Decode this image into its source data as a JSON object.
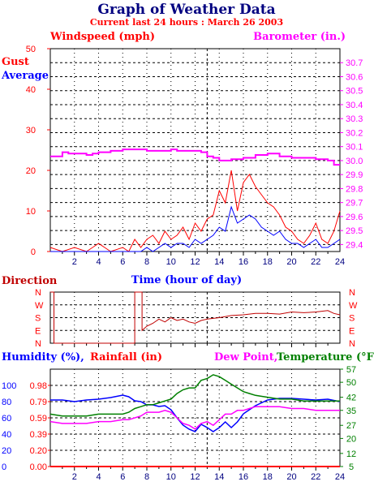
{
  "page": {
    "title": "Graph of Weather Data",
    "subtitle": "Current last 24 hours : March 26 2003"
  },
  "colors": {
    "navy": "#000080",
    "red": "#ff0000",
    "blue": "#0000ff",
    "magenta": "#ff00ff",
    "green": "#008000",
    "dark_red": "#c00000",
    "grid": "#000000"
  },
  "chart_data": [
    {
      "type": "line",
      "panel": "wind",
      "left_axis_label": "Windspeed (mph)",
      "right_axis_label": "Barometer (in.)",
      "legend": [
        "Gust",
        "Average"
      ],
      "xlabel": "Time (hour of day)",
      "x_ticks": [
        2,
        4,
        6,
        8,
        10,
        12,
        14,
        16,
        18,
        20,
        22,
        24
      ],
      "xlim": [
        0,
        24
      ],
      "ylim": [
        0,
        50
      ],
      "y_ticks": [
        0,
        10,
        20,
        30,
        40,
        50
      ],
      "y2lim": [
        29.35,
        30.8
      ],
      "y2_ticks": [
        "29.4",
        "29.5",
        "29.6",
        "29.7",
        "29.8",
        "29.9",
        "30.0",
        "30.1",
        "30.2",
        "30.3",
        "30.4",
        "30.5",
        "30.6",
        "30.7"
      ],
      "grid": true,
      "series": [
        {
          "name": "Gust",
          "color": "#ff0000",
          "axis": "left",
          "x": [
            0,
            1,
            2,
            3,
            3.5,
            4,
            5,
            6,
            6.5,
            7,
            7.5,
            8,
            8.5,
            9,
            9.5,
            10,
            10.5,
            11,
            11.5,
            12,
            12.5,
            13,
            13.5,
            14,
            14.5,
            15,
            15.5,
            16,
            16.5,
            17,
            17.5,
            18,
            18.5,
            19,
            19.5,
            20,
            20.5,
            21,
            21.5,
            22,
            22.5,
            23,
            23.5,
            24
          ],
          "values": [
            1,
            0,
            1,
            0,
            1,
            2,
            0,
            1,
            0,
            3,
            1,
            3,
            4,
            2,
            5,
            3,
            4,
            6,
            3,
            7,
            5,
            8,
            9,
            15,
            12,
            20,
            10,
            17,
            19,
            16,
            14,
            12,
            11,
            9,
            6,
            5,
            3,
            2,
            4,
            7,
            3,
            2,
            5,
            10
          ]
        },
        {
          "name": "Average",
          "color": "#0000ff",
          "axis": "left",
          "x": [
            0,
            1,
            2,
            3,
            4,
            5,
            6,
            7,
            7.5,
            8,
            8.5,
            9,
            9.5,
            10,
            10.5,
            11,
            11.5,
            12,
            12.5,
            13,
            13.5,
            14,
            14.5,
            15,
            15.5,
            16,
            16.5,
            17,
            17.5,
            18,
            18.5,
            19,
            19.5,
            20,
            20.5,
            21,
            21.5,
            22,
            22.5,
            23,
            23.5,
            24
          ],
          "values": [
            0,
            0,
            0,
            0,
            0,
            0,
            0,
            0,
            0,
            1,
            0,
            1,
            2,
            1,
            2,
            2,
            1,
            3,
            2,
            3,
            4,
            6,
            5,
            11,
            7,
            8,
            9,
            8,
            6,
            5,
            4,
            5,
            3,
            2,
            2,
            1,
            2,
            3,
            1,
            1,
            2,
            3
          ]
        },
        {
          "name": "Barometer",
          "color": "#ff00ff",
          "axis": "right",
          "x": [
            0,
            1,
            1.5,
            2,
            3,
            3.5,
            4,
            5,
            6,
            7,
            8,
            9,
            10,
            10.5,
            11,
            12,
            12.5,
            13,
            13.5,
            14,
            15,
            16,
            17,
            18,
            19,
            20,
            21,
            22,
            23,
            23.5,
            24
          ],
          "values": [
            30.03,
            30.06,
            30.05,
            30.05,
            30.04,
            30.05,
            30.06,
            30.07,
            30.08,
            30.08,
            30.07,
            30.07,
            30.08,
            30.07,
            30.07,
            30.07,
            30.06,
            30.03,
            30.02,
            30.0,
            30.01,
            30.02,
            30.04,
            30.05,
            30.03,
            30.02,
            30.02,
            30.01,
            30.0,
            29.97,
            29.97
          ]
        }
      ]
    },
    {
      "type": "line",
      "panel": "direction",
      "left_axis_label": "Direction",
      "right_axis_label": "",
      "xlim": [
        0,
        24
      ],
      "y_ticks": [
        "N",
        "W",
        "S",
        "E",
        "N"
      ],
      "series": [
        {
          "name": "Direction",
          "color": "#c00000",
          "x": [
            0,
            0.3,
            0.3,
            7.0,
            7.0,
            7.6,
            7.6,
            8,
            8.5,
            9,
            9.5,
            10,
            10.5,
            11,
            11.5,
            12,
            12.5,
            13,
            14,
            15,
            16,
            17,
            18,
            19,
            20,
            21,
            22,
            23,
            23.5,
            24
          ],
          "values": [
            360,
            360,
            0,
            0,
            360,
            360,
            90,
            120,
            140,
            170,
            150,
            180,
            160,
            170,
            150,
            140,
            160,
            170,
            180,
            195,
            200,
            210,
            210,
            205,
            220,
            215,
            220,
            230,
            210,
            200
          ]
        }
      ]
    },
    {
      "type": "line",
      "panel": "humidity",
      "legend": [
        "Humidity (%),",
        "Rainfall (in)",
        "Dew Point,",
        "Temperature (°F)"
      ],
      "xlim": [
        0,
        24
      ],
      "humidity_ticks": [
        0,
        20,
        40,
        60,
        80,
        100
      ],
      "rain_ticks": [
        "0.00",
        "0.20",
        "0.39",
        "0.59",
        "0.79",
        "0.98"
      ],
      "temp_ticks": [
        5,
        12,
        20,
        27,
        35,
        42,
        50,
        57
      ],
      "series": [
        {
          "name": "Humidity (%)",
          "color": "#0000ff",
          "axis": "humidity",
          "x": [
            0,
            1,
            2,
            3,
            4,
            5,
            6,
            6.5,
            7,
            7.5,
            8,
            8.5,
            9,
            9.5,
            10,
            10.5,
            11,
            11.5,
            12,
            12.5,
            13,
            13.5,
            14,
            14.5,
            15,
            15.5,
            16,
            16.5,
            17,
            18,
            19,
            20,
            21,
            22,
            23,
            24
          ],
          "values": [
            82,
            82,
            80,
            82,
            83,
            85,
            88,
            86,
            81,
            80,
            76,
            76,
            74,
            75,
            70,
            60,
            51,
            46,
            43,
            52,
            48,
            43,
            48,
            55,
            48,
            55,
            65,
            70,
            75,
            82,
            84,
            84,
            83,
            82,
            83,
            80
          ]
        },
        {
          "name": "Rainfall (in)",
          "color": "#ff0000",
          "axis": "rain",
          "x": [
            0,
            24
          ],
          "values": [
            0,
            0
          ]
        },
        {
          "name": "Dew Point",
          "color": "#ff00ff",
          "axis": "temp",
          "x": [
            0,
            1,
            2,
            3,
            4,
            5,
            6,
            6.5,
            7,
            7.5,
            8,
            8.5,
            9,
            9.5,
            10,
            10.5,
            11,
            11.5,
            12,
            12.5,
            13,
            13.5,
            14,
            14.5,
            15,
            15.5,
            16,
            16.5,
            17,
            18,
            19,
            20,
            21,
            22,
            23,
            24
          ],
          "values": [
            29,
            28,
            28,
            28,
            29,
            29,
            30,
            30,
            31,
            32,
            34,
            34,
            34,
            35,
            34,
            31,
            28,
            27,
            25,
            28,
            29,
            27,
            30,
            33,
            33,
            35,
            35,
            36,
            37,
            37,
            37,
            36,
            36,
            35,
            35,
            35
          ]
        },
        {
          "name": "Temperature (°F)",
          "color": "#008000",
          "axis": "temp",
          "x": [
            0,
            1,
            2,
            3,
            4,
            5,
            6,
            6.5,
            7,
            7.5,
            8,
            8.5,
            9,
            9.5,
            10,
            10.5,
            11,
            11.5,
            12,
            12.5,
            13,
            13.5,
            14,
            14.5,
            15,
            15.5,
            16,
            16.5,
            17,
            18,
            19,
            20,
            21,
            22,
            23,
            24
          ],
          "values": [
            33,
            32,
            32,
            32,
            33,
            33,
            33,
            34,
            36,
            37,
            38,
            38,
            39,
            40,
            41,
            44,
            46,
            47,
            47,
            51,
            52,
            54,
            53,
            51,
            49,
            47,
            45,
            44,
            43,
            42,
            41,
            41,
            40,
            40,
            40,
            40
          ]
        }
      ]
    }
  ]
}
